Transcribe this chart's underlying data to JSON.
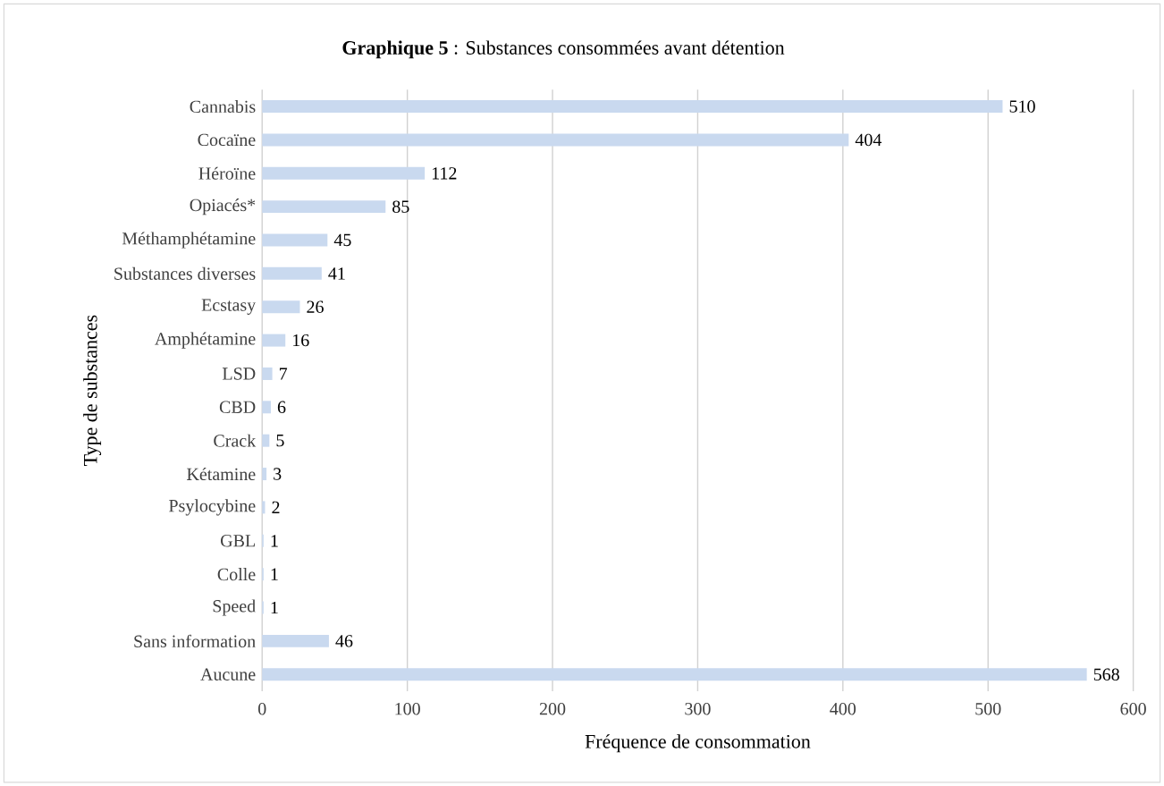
{
  "chart_data": {
    "type": "bar",
    "orientation": "horizontal",
    "title": "**Graphique 5** : Substances consommées avant détention",
    "xlabel": "Fréquence de consommation",
    "ylabel": "Type de substances",
    "categories": [
      "Cannabis",
      "Cocaïne",
      "Héroïne",
      "Opiacés*",
      "Méthamphétamine",
      "Substances diverses",
      "Ecstasy",
      "Amphétamine",
      "LSD",
      "CBD",
      "Crack",
      "Kétamine",
      "Psylocybine",
      "GBL",
      "Colle",
      "Speed",
      "Sans information",
      "Aucune"
    ],
    "values": [
      510,
      404,
      112,
      85,
      45,
      41,
      26,
      16,
      7,
      6,
      5,
      3,
      2,
      1,
      1,
      1,
      46,
      568
    ],
    "color": "#c9d9ef",
    "xlim": [
      0,
      600
    ],
    "xticks": [
      0,
      100,
      200,
      300,
      400,
      500,
      600
    ],
    "grid": "x",
    "data_labels": true
  }
}
